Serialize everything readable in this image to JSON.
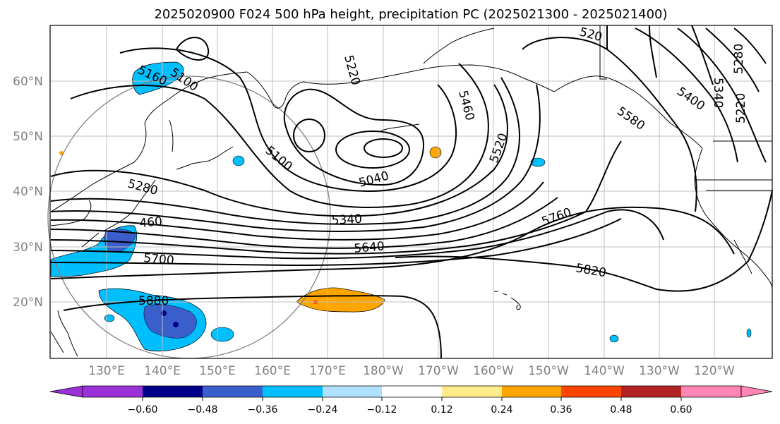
{
  "title": "2025020900 F024 500 hPa height, precipitation PC (2025021300 - 2025021400)",
  "axes": {
    "lat_labels": [
      "60°N",
      "50°N",
      "40°N",
      "30°N",
      "20°N"
    ],
    "lon_labels": [
      "130°E",
      "140°E",
      "150°E",
      "160°E",
      "170°E",
      "180°W",
      "170°W",
      "160°W",
      "150°W",
      "140°W",
      "130°W",
      "120°W"
    ]
  },
  "contour_labels": [
    "5160",
    "5100",
    "5220",
    "5460",
    "5400",
    "5340",
    "5280",
    "5220",
    "5100",
    "5040",
    "5520",
    "5580",
    "5280",
    "460",
    "5340",
    "5640",
    "5700",
    "5760",
    "5820",
    "5880",
    "520"
  ],
  "colorbar": {
    "ticks": [
      "−0.60",
      "−0.48",
      "−0.36",
      "−0.24",
      "−0.12",
      "0.12",
      "0.24",
      "0.36",
      "0.48",
      "0.60"
    ],
    "colors": [
      "#9b30d8",
      "#00008b",
      "#3a5fcd",
      "#00bfff",
      "#b0e0ff",
      "#ffffff",
      "#ffeb8a",
      "#ffa500",
      "#ff4500",
      "#b22222",
      "#ff85b4"
    ]
  },
  "colors": {
    "contour": "#000000",
    "grid": "#bfbfbf",
    "tick_label": "#808080"
  }
}
